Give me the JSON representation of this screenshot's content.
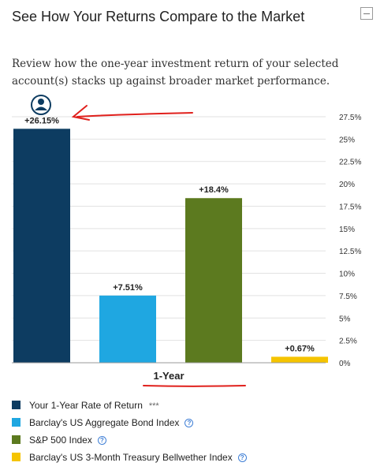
{
  "widget": {
    "title": "See How Your Returns Compare to the Market",
    "description": "Review how the one-year investment return of your selected account(s) stacks up against broader market performance."
  },
  "chart_data": {
    "type": "bar",
    "categories": [
      "Your 1-Year Rate of Return",
      "Barclay's US Aggregate Bond Index",
      "S&P 500 Index",
      "Barclay's US 3-Month Treasury Bellwether Index"
    ],
    "values": [
      26.15,
      7.51,
      18.4,
      0.67
    ],
    "data_labels": [
      "+26.15%",
      "+7.51%",
      "+18.4%",
      "+0.67%"
    ],
    "colors": [
      "#0d3c61",
      "#1fa7e1",
      "#5c7a1f",
      "#f5c400"
    ],
    "xlabel": "1-Year",
    "ylim": [
      0,
      27.5
    ],
    "yticks": [
      0,
      2.5,
      5,
      7.5,
      10,
      12.5,
      15,
      17.5,
      20,
      22.5,
      25,
      27.5
    ],
    "ytick_labels": [
      "0%",
      "2.5%",
      "5%",
      "7.5%",
      "10%",
      "12.5%",
      "15%",
      "17.5%",
      "20%",
      "22.5%",
      "25%",
      "27.5%"
    ],
    "grid": true,
    "legend_position": "bottom"
  },
  "legend": {
    "items": [
      {
        "label": "Your 1-Year Rate of Return",
        "note": "***",
        "color": "#0d3c61"
      },
      {
        "label": "Barclay's US Aggregate Bond Index",
        "help": "?",
        "color": "#1fa7e1"
      },
      {
        "label": "S&P 500 Index",
        "help": "?",
        "color": "#5c7a1f"
      },
      {
        "label": "Barclay's US 3-Month Treasury Bellwether Index",
        "help": "?",
        "color": "#f5c400"
      }
    ]
  },
  "icons": {
    "collapse": "minus-square-icon",
    "user": "user-avatar-icon",
    "help": "question-circle-icon"
  },
  "annotations": {
    "arrow_color": "#e0201c",
    "underline_color": "#e0201c"
  }
}
